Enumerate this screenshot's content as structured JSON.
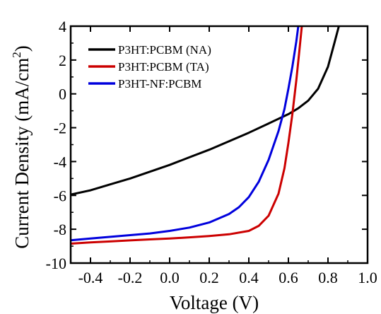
{
  "chart_data": {
    "type": "line",
    "title": "",
    "xlabel": "Voltage (V)",
    "ylabel_main": "Current Density (mA/cm",
    "ylabel_sup": "2",
    "ylabel_close": ")",
    "xlim": [
      -0.5,
      1.0
    ],
    "ylim": [
      -10,
      4
    ],
    "x_ticks": [
      -0.4,
      -0.2,
      0.0,
      0.2,
      0.4,
      0.6,
      0.8,
      1.0
    ],
    "x_tick_labels": [
      "-0.4",
      "-0.2",
      "0.0",
      "0.2",
      "0.4",
      "0.6",
      "0.8",
      "1.0"
    ],
    "y_ticks": [
      -10,
      -8,
      -6,
      -4,
      -2,
      0,
      2,
      4
    ],
    "y_tick_labels": [
      "-10",
      "-8",
      "-6",
      "-4",
      "-2",
      "0",
      "2",
      "4"
    ],
    "grid": false,
    "legend_position": "top-left",
    "series": [
      {
        "name": "P3HT:PCBM (NA)",
        "color": "#000000",
        "points": [
          [
            -0.5,
            -5.95
          ],
          [
            -0.4,
            -5.7
          ],
          [
            -0.3,
            -5.35
          ],
          [
            -0.2,
            -5.0
          ],
          [
            -0.1,
            -4.6
          ],
          [
            0.0,
            -4.2
          ],
          [
            0.1,
            -3.75
          ],
          [
            0.2,
            -3.3
          ],
          [
            0.3,
            -2.8
          ],
          [
            0.4,
            -2.3
          ],
          [
            0.5,
            -1.75
          ],
          [
            0.6,
            -1.2
          ],
          [
            0.65,
            -0.85
          ],
          [
            0.7,
            -0.4
          ],
          [
            0.75,
            0.3
          ],
          [
            0.8,
            1.6
          ],
          [
            0.83,
            2.9
          ],
          [
            0.855,
            4.0
          ]
        ]
      },
      {
        "name": "P3HT:PCBM (TA)",
        "color": "#cc0000",
        "points": [
          [
            -0.5,
            -8.85
          ],
          [
            -0.4,
            -8.78
          ],
          [
            -0.3,
            -8.72
          ],
          [
            -0.2,
            -8.66
          ],
          [
            -0.1,
            -8.6
          ],
          [
            0.0,
            -8.55
          ],
          [
            0.1,
            -8.48
          ],
          [
            0.2,
            -8.4
          ],
          [
            0.3,
            -8.3
          ],
          [
            0.4,
            -8.1
          ],
          [
            0.45,
            -7.8
          ],
          [
            0.5,
            -7.2
          ],
          [
            0.55,
            -5.9
          ],
          [
            0.58,
            -4.4
          ],
          [
            0.6,
            -2.9
          ],
          [
            0.62,
            -1.2
          ],
          [
            0.64,
            0.8
          ],
          [
            0.655,
            2.5
          ],
          [
            0.668,
            4.0
          ]
        ]
      },
      {
        "name": "P3HT-NF:PCBM",
        "color": "#0000dd",
        "points": [
          [
            -0.5,
            -8.65
          ],
          [
            -0.4,
            -8.55
          ],
          [
            -0.3,
            -8.45
          ],
          [
            -0.2,
            -8.35
          ],
          [
            -0.1,
            -8.25
          ],
          [
            0.0,
            -8.1
          ],
          [
            0.1,
            -7.9
          ],
          [
            0.2,
            -7.6
          ],
          [
            0.3,
            -7.1
          ],
          [
            0.35,
            -6.7
          ],
          [
            0.4,
            -6.1
          ],
          [
            0.45,
            -5.2
          ],
          [
            0.5,
            -3.9
          ],
          [
            0.55,
            -2.2
          ],
          [
            0.58,
            -0.9
          ],
          [
            0.6,
            0.3
          ],
          [
            0.62,
            1.6
          ],
          [
            0.64,
            3.1
          ],
          [
            0.65,
            4.0
          ]
        ]
      }
    ]
  }
}
